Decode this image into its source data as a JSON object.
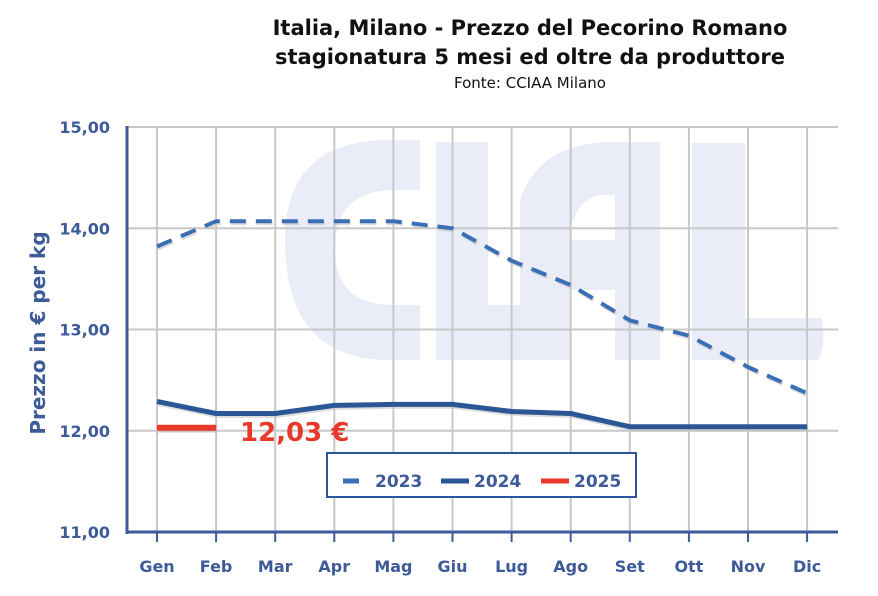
{
  "chart_data": {
    "type": "line",
    "title": "Italia, Milano - Prezzo del Pecorino Romano",
    "title_line2": "stagionatura 5 mesi ed oltre da produttore",
    "subtitle": "Fonte: CCIAA Milano",
    "xlabel": "",
    "ylabel": "Prezzo in € per kg",
    "ylim": [
      11,
      15
    ],
    "yticks": [
      11,
      12,
      13,
      14,
      15
    ],
    "ytick_labels": [
      "11,00",
      "12,00",
      "13,00",
      "14,00",
      "15,00"
    ],
    "categories": [
      "Gen",
      "Feb",
      "Mar",
      "Apr",
      "Mag",
      "Giu",
      "Lug",
      "Ago",
      "Set",
      "Ott",
      "Nov",
      "Dic"
    ],
    "grid": true,
    "legend_position": "bottom-center",
    "series": [
      {
        "name": "2023",
        "style": "dashed",
        "color": "#3A6EB5",
        "values": [
          13.82,
          14.07,
          14.07,
          14.07,
          14.07,
          14.0,
          13.68,
          13.44,
          13.09,
          12.94,
          12.63,
          12.37
        ]
      },
      {
        "name": "2024",
        "style": "solid",
        "color": "#2B5797",
        "values": [
          12.29,
          12.17,
          12.17,
          12.25,
          12.26,
          12.26,
          12.19,
          12.17,
          12.04,
          12.04,
          12.04,
          12.04
        ]
      },
      {
        "name": "2025",
        "style": "solid",
        "color": "#E8392A",
        "values": [
          12.03,
          12.03,
          null,
          null,
          null,
          null,
          null,
          null,
          null,
          null,
          null,
          null
        ]
      }
    ],
    "annotation": {
      "text": "12,03 €",
      "color": "#E8392A"
    },
    "watermark": "CLAL"
  },
  "colors": {
    "axis": "#3D5A99",
    "grid": "#C8C8C8",
    "watermark": "#EAECF7"
  }
}
